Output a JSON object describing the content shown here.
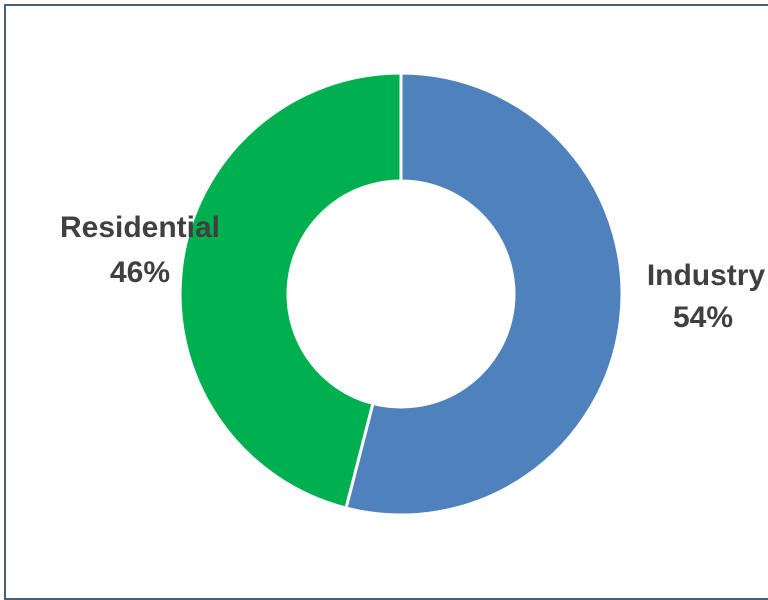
{
  "chart_data": {
    "type": "pie",
    "subtype": "donut",
    "categories": [
      "Industry",
      "Residential"
    ],
    "values": [
      54,
      46
    ],
    "unit": "%",
    "colors": [
      "#4f81bd",
      "#00b050"
    ],
    "slice_border_color": "#ffffff",
    "label_color": "#404040",
    "title": "",
    "legend": "none",
    "start_angle_deg": 0,
    "direction": "clockwise"
  },
  "labels": [
    {
      "name": "Industry",
      "percent": "54%"
    },
    {
      "name": "Residential",
      "percent": "46%"
    }
  ]
}
